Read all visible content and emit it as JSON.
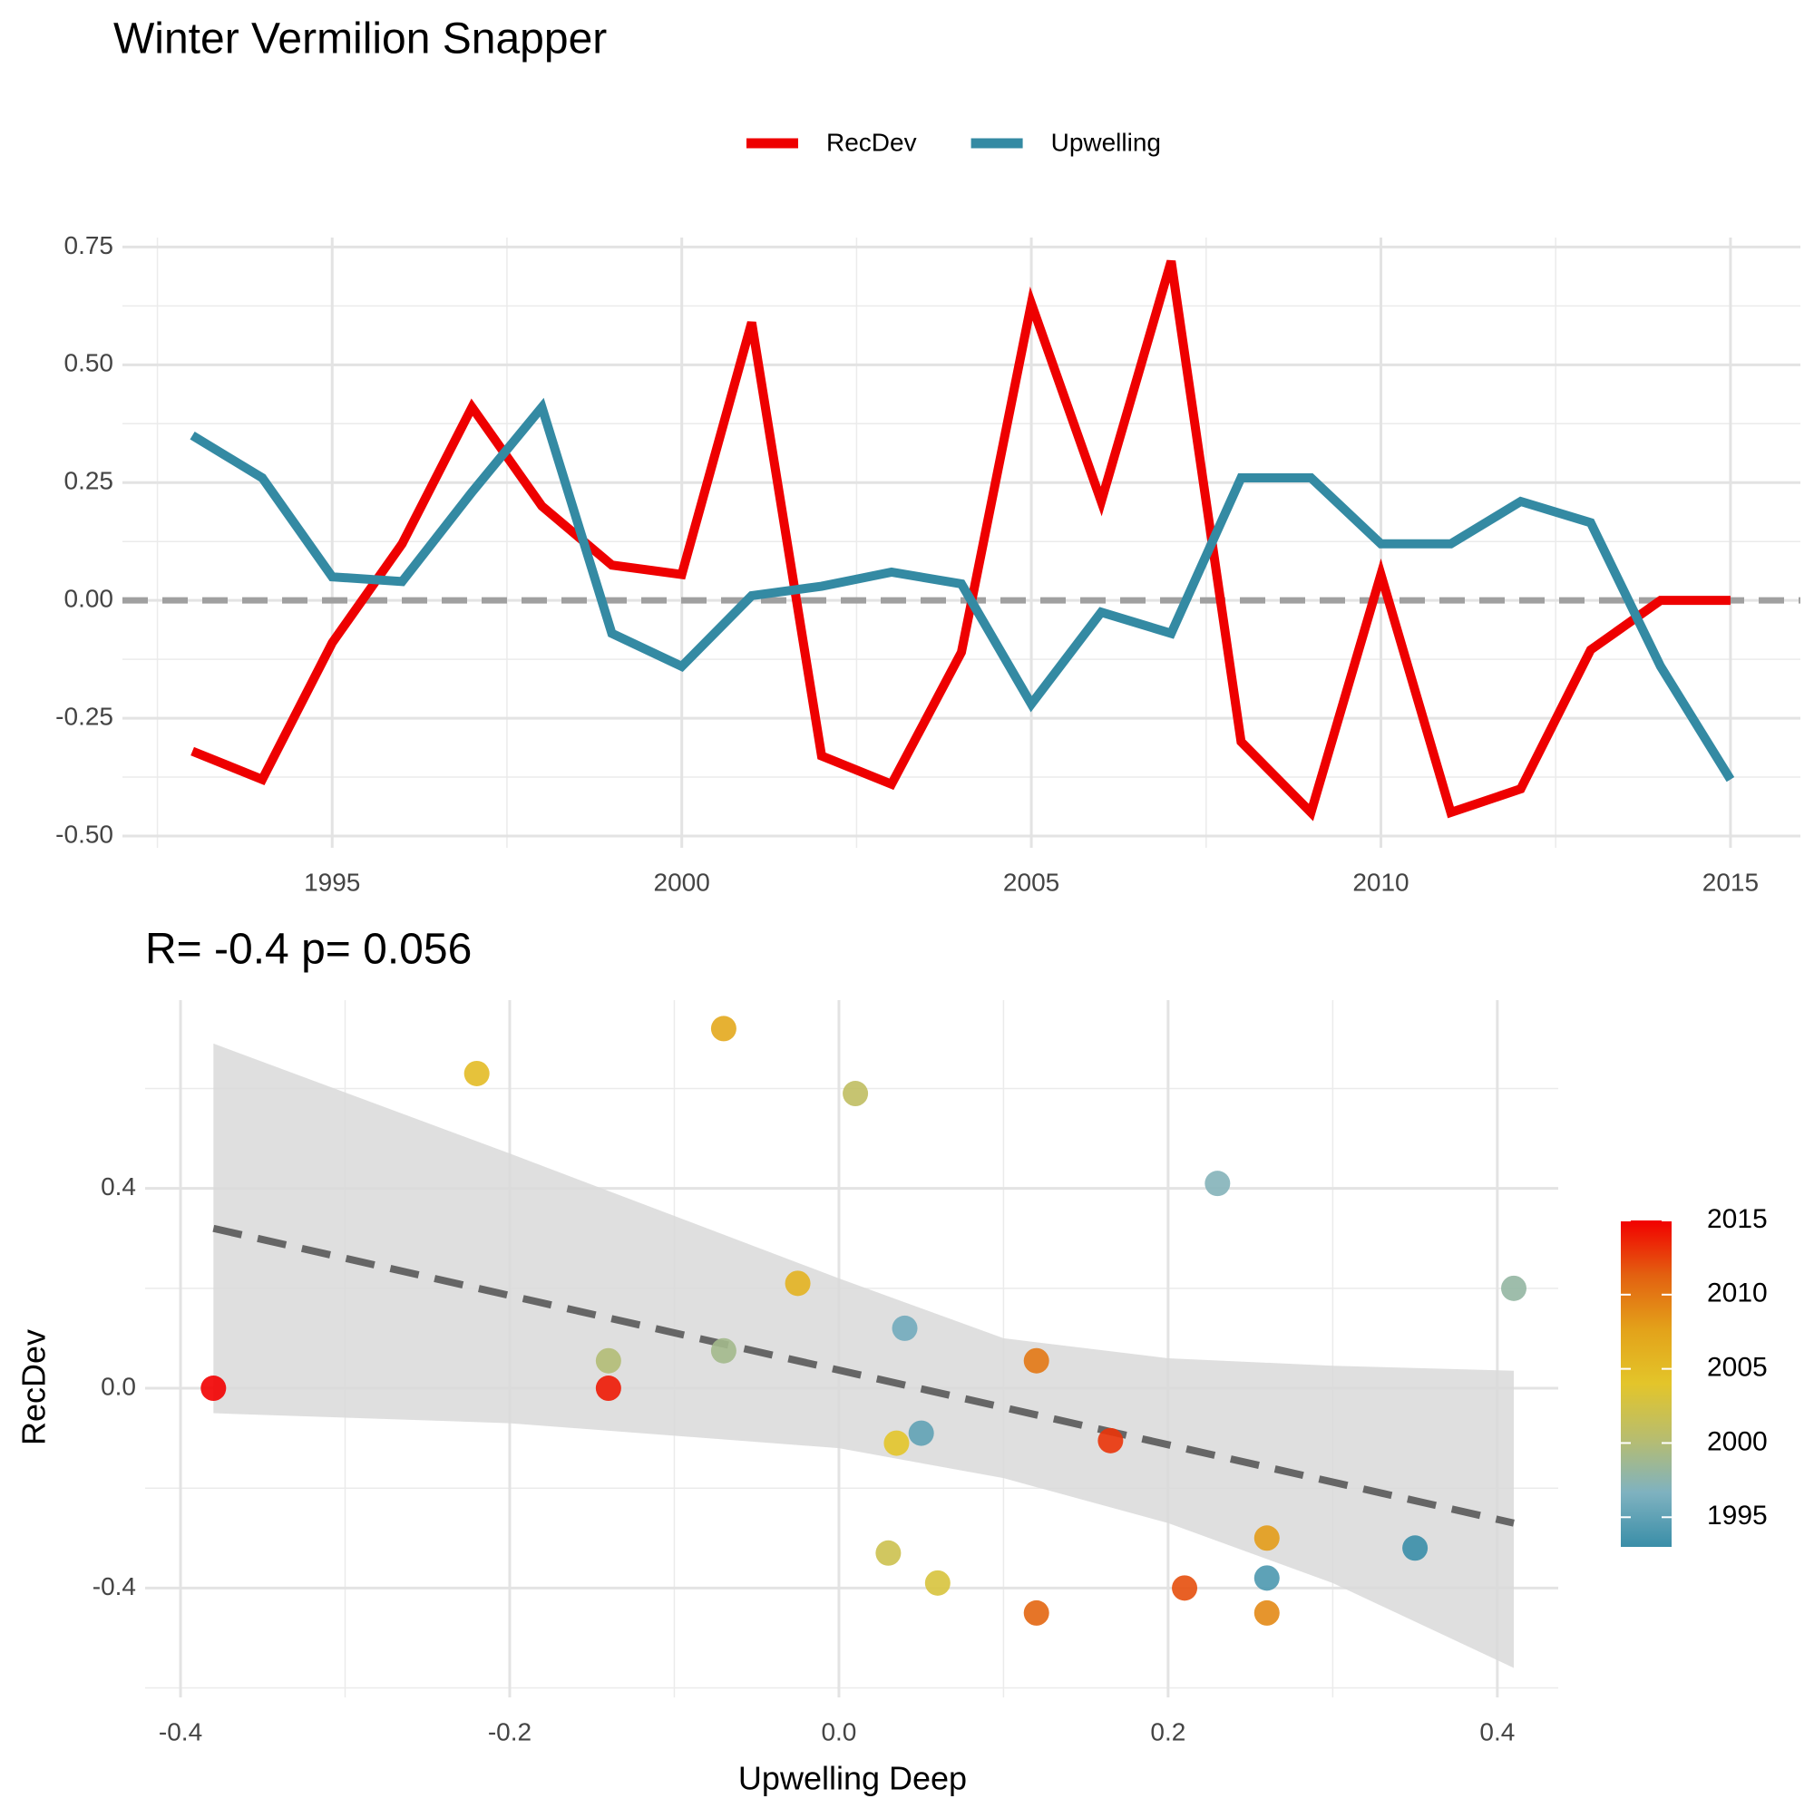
{
  "chart_data": [
    {
      "type": "line",
      "title": "Winter Vermilion Snapper",
      "x": [
        1993,
        1994,
        1995,
        1996,
        1997,
        1998,
        1999,
        2000,
        2001,
        2002,
        2003,
        2004,
        2005,
        2006,
        2007,
        2008,
        2009,
        2010,
        2011,
        2012,
        2013,
        2014,
        2015
      ],
      "series": [
        {
          "name": "RecDev",
          "color": "#ee0000",
          "values": [
            -0.32,
            -0.38,
            -0.09,
            0.12,
            0.41,
            0.2,
            0.075,
            0.055,
            0.59,
            -0.33,
            -0.39,
            -0.11,
            0.63,
            0.21,
            0.72,
            -0.3,
            -0.45,
            0.055,
            -0.45,
            -0.4,
            -0.105,
            0.0,
            0.0
          ]
        },
        {
          "name": "Upwelling",
          "color": "#348aa3",
          "values": [
            0.35,
            0.26,
            0.05,
            0.04,
            0.23,
            0.41,
            -0.07,
            -0.14,
            0.01,
            0.03,
            0.06,
            0.035,
            -0.22,
            -0.025,
            -0.07,
            0.26,
            0.26,
            0.12,
            0.12,
            0.21,
            0.165,
            -0.14,
            -0.38
          ]
        }
      ],
      "xlim": [
        1992,
        2016
      ],
      "xticks": [
        1995,
        2000,
        2005,
        2010,
        2015
      ],
      "ylim": [
        -0.525,
        0.77
      ],
      "yticks": [
        {
          "value": -0.5,
          "label": "-0.50"
        },
        {
          "value": -0.25,
          "label": "-0.25"
        },
        {
          "value": 0,
          "label": "0.00"
        },
        {
          "value": 0.25,
          "label": "0.25"
        },
        {
          "value": 0.5,
          "label": "0.50"
        },
        {
          "value": 0.75,
          "label": "0.75"
        }
      ],
      "reference_line": 0,
      "grid": true,
      "legend": "top"
    },
    {
      "type": "scatter",
      "title": "R= -0.4  p= 0.056",
      "x_label": "Upwelling Deep",
      "y_label": "RecDev",
      "x": [
        0.35,
        0.26,
        0.05,
        0.04,
        0.23,
        0.41,
        -0.07,
        -0.14,
        0.01,
        0.03,
        0.06,
        0.035,
        -0.22,
        -0.025,
        -0.07,
        0.26,
        0.26,
        0.12,
        0.12,
        0.21,
        0.165,
        -0.14,
        -0.38
      ],
      "values": [
        -0.32,
        -0.38,
        -0.09,
        0.12,
        0.41,
        0.2,
        0.075,
        0.055,
        0.59,
        -0.33,
        -0.39,
        -0.11,
        0.63,
        0.21,
        0.72,
        -0.3,
        -0.45,
        0.055,
        -0.45,
        -0.4,
        -0.105,
        0.0,
        0.0
      ],
      "years": [
        1993,
        1994,
        1995,
        1996,
        1997,
        1998,
        1999,
        2000,
        2001,
        2002,
        2003,
        2004,
        2005,
        2006,
        2007,
        2008,
        2009,
        2010,
        2011,
        2012,
        2013,
        2014,
        2015
      ],
      "trend": {
        "x": [
          -0.38,
          0.41
        ],
        "y": [
          0.32,
          -0.27
        ]
      },
      "band": {
        "x": [
          -0.38,
          -0.2,
          0,
          0.1,
          0.2,
          0.3,
          0.41
        ],
        "upper": [
          0.69,
          0.47,
          0.22,
          0.1,
          0.06,
          0.045,
          0.035
        ],
        "lower": [
          -0.05,
          -0.07,
          -0.12,
          -0.18,
          -0.27,
          -0.39,
          -0.56
        ]
      },
      "xlim": [
        -0.4215,
        0.437
      ],
      "xticks": [
        {
          "value": -0.4,
          "label": "-0.4"
        },
        {
          "value": -0.2,
          "label": "-0.2"
        },
        {
          "value": 0,
          "label": "0.0"
        },
        {
          "value": 0.2,
          "label": "0.2"
        },
        {
          "value": 0.4,
          "label": "0.4"
        }
      ],
      "ylim": [
        -0.619,
        0.777
      ],
      "yticks": [
        {
          "value": -0.4,
          "label": "-0.4"
        },
        {
          "value": 0,
          "label": "0.0"
        },
        {
          "value": 0.4,
          "label": "0.4"
        }
      ],
      "grid": true,
      "colorbar": {
        "limits": [
          1993,
          2015
        ],
        "ticks": [
          1995,
          2000,
          2005,
          2010,
          2015
        ],
        "colors": [
          "#3a8ea8",
          "#7fb2c0",
          "#b8bd6e",
          "#e3c52a",
          "#e3a21a",
          "#e36010",
          "#f20000"
        ]
      }
    }
  ]
}
